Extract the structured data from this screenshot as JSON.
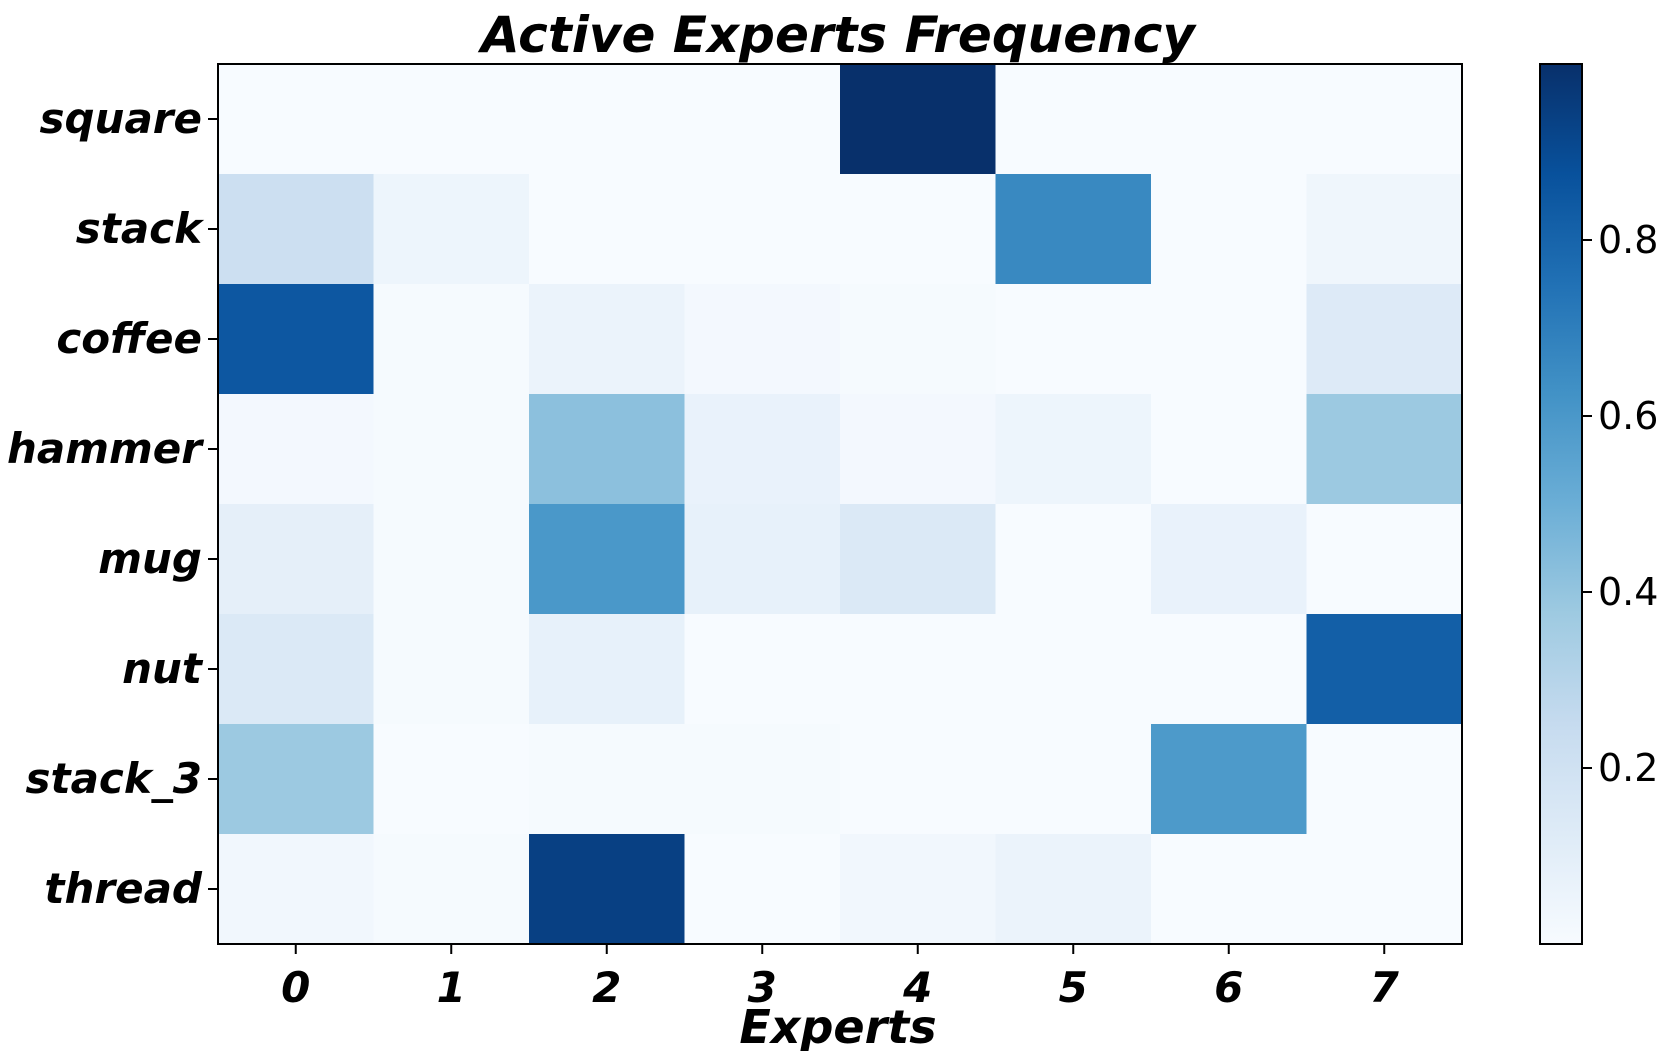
{
  "chart_data": {
    "type": "heatmap",
    "title": "Active Experts Frequency",
    "xlabel": "Experts",
    "ylabel": "",
    "x_categories": [
      "0",
      "1",
      "2",
      "3",
      "4",
      "5",
      "6",
      "7"
    ],
    "y_categories": [
      "square",
      "stack",
      "coffee",
      "hammer",
      "mug",
      "nut",
      "stack_3",
      "thread"
    ],
    "values": [
      [
        0.0,
        0.0,
        0.0,
        0.0,
        1.0,
        0.0,
        0.0,
        0.0
      ],
      [
        0.22,
        0.05,
        0.0,
        0.0,
        0.0,
        0.66,
        0.0,
        0.04
      ],
      [
        0.85,
        0.01,
        0.06,
        0.02,
        0.01,
        0.0,
        0.0,
        0.13
      ],
      [
        0.02,
        0.01,
        0.42,
        0.07,
        0.02,
        0.05,
        0.0,
        0.38
      ],
      [
        0.09,
        0.01,
        0.6,
        0.08,
        0.14,
        0.0,
        0.07,
        0.0
      ],
      [
        0.14,
        0.01,
        0.08,
        0.0,
        0.0,
        0.0,
        0.0,
        0.82
      ],
      [
        0.38,
        0.0,
        0.01,
        0.01,
        0.0,
        0.0,
        0.59,
        0.0
      ],
      [
        0.03,
        0.01,
        0.94,
        0.0,
        0.03,
        0.06,
        0.0,
        0.0
      ]
    ],
    "colormap": "Blues",
    "vmin": 0.0,
    "vmax": 1.0,
    "colorbar_ticks": [
      {
        "value": 0.2,
        "label": "0.2"
      },
      {
        "value": 0.4,
        "label": "0.4"
      },
      {
        "value": 0.6,
        "label": "0.6"
      },
      {
        "value": 0.8,
        "label": "0.8"
      }
    ],
    "grid": false
  }
}
